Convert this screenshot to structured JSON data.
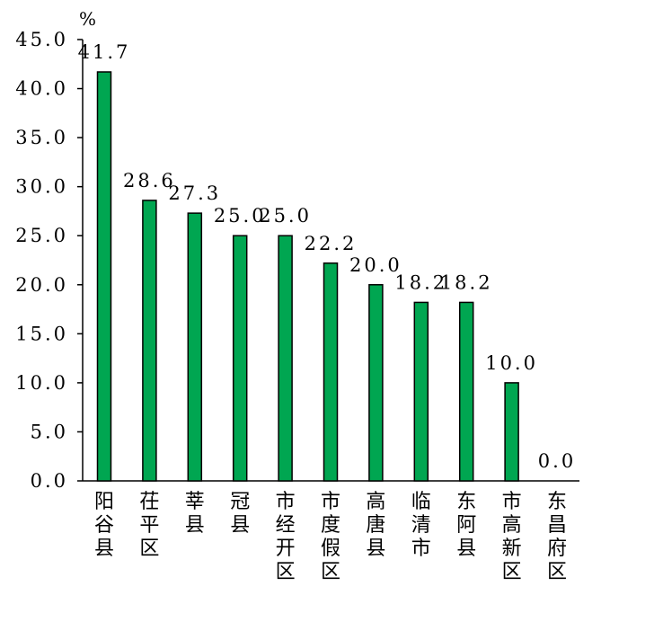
{
  "chart_data": {
    "type": "bar",
    "unit": "%",
    "categories": [
      "阳谷县",
      "茌平区",
      "莘县",
      "冠县",
      "市经开区",
      "市度假区",
      "高唐县",
      "临清市",
      "东阿县",
      "市高新区",
      "东昌府区"
    ],
    "values": [
      41.7,
      28.6,
      27.3,
      25.0,
      25.0,
      22.2,
      20.0,
      18.2,
      18.2,
      10.0,
      0.0
    ],
    "data_labels": [
      "41.7",
      "28.6",
      "27.3",
      "25.0",
      "25.0",
      "22.2",
      "20.0",
      "18.2",
      "18.2",
      "10.0",
      "0.0"
    ],
    "ylim": [
      0,
      45
    ],
    "yticks": [
      "0.0",
      "5.0",
      "10.0",
      "15.0",
      "20.0",
      "25.0",
      "30.0",
      "35.0",
      "40.0",
      "45.0"
    ],
    "ytick_values": [
      0,
      5,
      10,
      15,
      20,
      25,
      30,
      35,
      40,
      45
    ],
    "bar_color": "#00a651",
    "grid": false,
    "legend": "none"
  }
}
